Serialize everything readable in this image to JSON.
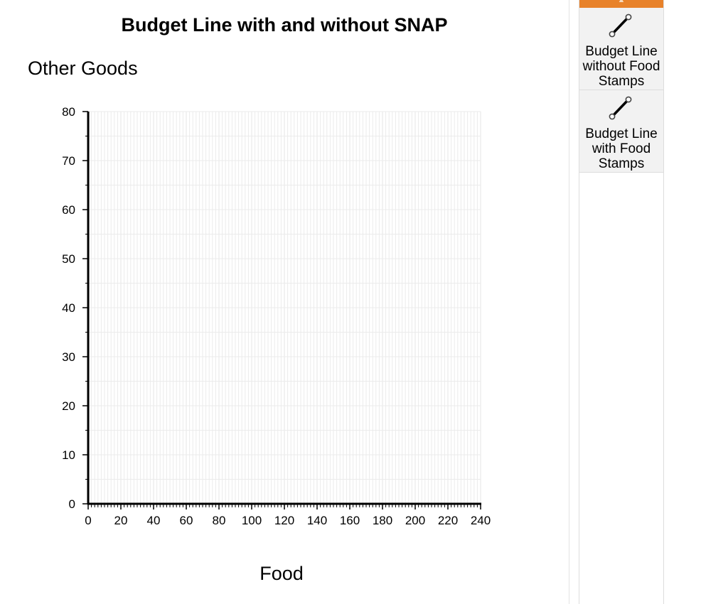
{
  "chart_data": {
    "type": "line",
    "title": "Budget Line with and without SNAP",
    "xlabel": "Food",
    "ylabel": "Other Goods",
    "xlim": [
      0,
      240
    ],
    "ylim": [
      0,
      80
    ],
    "x_ticks": [
      0,
      20,
      40,
      60,
      80,
      100,
      120,
      140,
      160,
      180,
      200,
      220,
      240
    ],
    "y_ticks": [
      0,
      10,
      20,
      30,
      40,
      50,
      60,
      70,
      80
    ],
    "x_minor_step": 2,
    "y_minor_step": 5,
    "grid": true,
    "series": []
  },
  "palette": {
    "tools": [
      {
        "label": "Budget Line without Food Stamps",
        "icon": "line-segment-icon"
      },
      {
        "label": "Budget Line with Food Stamps",
        "icon": "line-segment-icon"
      }
    ]
  },
  "colors": {
    "accent": "#e8822a",
    "grid_line": "#ebebeb",
    "axis": "#000000"
  }
}
